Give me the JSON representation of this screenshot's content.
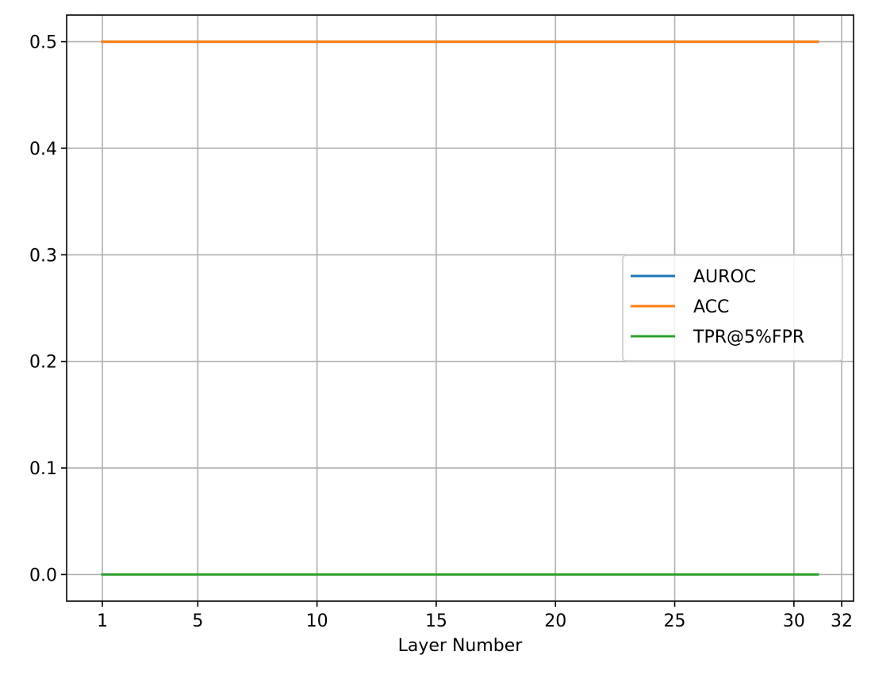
{
  "chart_data": {
    "type": "line",
    "title": "",
    "xlabel": "Layer Number",
    "ylabel": "",
    "xlim": [
      -0.5,
      32.5
    ],
    "ylim": [
      -0.025,
      0.525
    ],
    "xticks": [
      1,
      5,
      10,
      15,
      20,
      25,
      30,
      32
    ],
    "xtick_labels": [
      "1",
      "5",
      "10",
      "15",
      "20",
      "25",
      "30",
      "32"
    ],
    "yticks": [
      0.0,
      0.1,
      0.2,
      0.3,
      0.4,
      0.5
    ],
    "ytick_labels": [
      "0.0",
      "0.1",
      "0.2",
      "0.3",
      "0.4",
      "0.5"
    ],
    "grid": true,
    "legend_position": "center-right",
    "x": [
      1,
      2,
      3,
      4,
      5,
      6,
      7,
      8,
      9,
      10,
      11,
      12,
      13,
      14,
      15,
      16,
      17,
      18,
      19,
      20,
      21,
      22,
      23,
      24,
      25,
      26,
      27,
      28,
      29,
      30,
      31
    ],
    "series": [
      {
        "name": "AUROC",
        "color": "#1f77b4",
        "values": [
          0.5,
          0.5,
          0.5,
          0.5,
          0.5,
          0.5,
          0.5,
          0.5,
          0.5,
          0.5,
          0.5,
          0.5,
          0.5,
          0.5,
          0.5,
          0.5,
          0.5,
          0.5,
          0.5,
          0.5,
          0.5,
          0.5,
          0.5,
          0.5,
          0.5,
          0.5,
          0.5,
          0.5,
          0.5,
          0.5,
          0.5
        ]
      },
      {
        "name": "ACC",
        "color": "#ff7f0e",
        "values": [
          0.5,
          0.5,
          0.5,
          0.5,
          0.5,
          0.5,
          0.5,
          0.5,
          0.5,
          0.5,
          0.5,
          0.5,
          0.5,
          0.5,
          0.5,
          0.5,
          0.5,
          0.5,
          0.5,
          0.5,
          0.5,
          0.5,
          0.5,
          0.5,
          0.5,
          0.5,
          0.5,
          0.5,
          0.5,
          0.5,
          0.5
        ]
      },
      {
        "name": "TPR@5%FPR",
        "color": "#2ca02c",
        "values": [
          0,
          0,
          0,
          0,
          0,
          0,
          0,
          0,
          0,
          0,
          0,
          0,
          0,
          0,
          0,
          0,
          0,
          0,
          0,
          0,
          0,
          0,
          0,
          0,
          0,
          0,
          0,
          0,
          0,
          0,
          0
        ]
      }
    ]
  }
}
